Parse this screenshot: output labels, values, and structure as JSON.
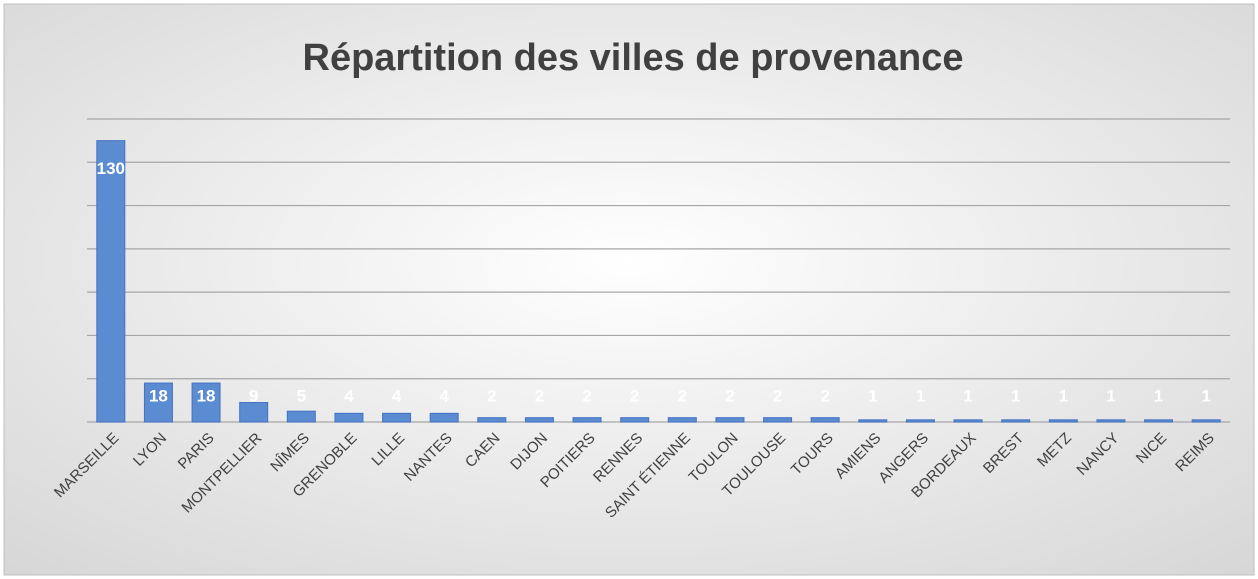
{
  "chart_data": {
    "type": "bar",
    "title": "Répartition des villes de provenance",
    "categories": [
      "MARSEILLE",
      "LYON",
      "PARIS",
      "MONTPELLIER",
      "NÎMES",
      "GRENOBLE",
      "LILLE",
      "NANTES",
      "CAEN",
      "DIJON",
      "POITIERS",
      "RENNES",
      "SAINT ÉTIENNE",
      "TOULON",
      "TOULOUSE",
      "TOURS",
      "AMIENS",
      "ANGERS",
      "BORDEAUX",
      "BREST",
      "METZ",
      "NANCY",
      "NICE",
      "REIMS"
    ],
    "values": [
      130,
      18,
      18,
      9,
      5,
      4,
      4,
      4,
      2,
      2,
      2,
      2,
      2,
      2,
      2,
      2,
      1,
      1,
      1,
      1,
      1,
      1,
      1,
      1
    ],
    "color": "#5b8bd0",
    "ylim": [
      0,
      140
    ],
    "yticks": [
      0,
      20,
      40,
      60,
      80,
      100,
      120,
      140
    ],
    "grid": true
  }
}
